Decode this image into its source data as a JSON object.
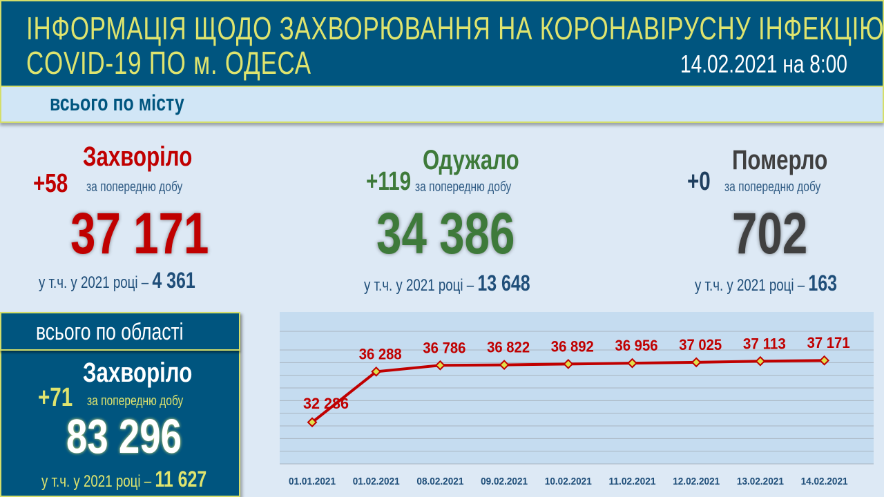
{
  "header": {
    "title_line1": "ІНФОРМАЦІЯ ЩОДО ЗАХВОРЮВАННЯ НА КОРОНАВІРУСНУ ІНФЕКЦІЮ",
    "title_line2": "COVID-19 ПО м. ОДЕСА",
    "date": "14.02.2021 на 8:00"
  },
  "city": {
    "section_title": "всього по місту",
    "sick": {
      "label": "Захворіло",
      "delta": "+58",
      "period": "за попередню добу",
      "total": "37 171",
      "year_label": "у т.ч. у 2021 році –",
      "year_value": "4 361"
    },
    "recovered": {
      "label": "Одужало",
      "delta": "+119",
      "period": "за попередню добу",
      "total": "34 386",
      "year_label": "у т.ч. у 2021 році –",
      "year_value": "13 648"
    },
    "died": {
      "label": "Померло",
      "delta": "+0",
      "period": "за попередню добу",
      "total": "702",
      "year_label": "у т.ч. у 2021 році –",
      "year_value": "163"
    }
  },
  "region": {
    "section_title": "всього по області",
    "label": "Захворіло",
    "delta": "+71",
    "period": "за попередню добу",
    "total": "83 296",
    "year_label": "у т.ч. у 2021 році –",
    "year_value": "11 627"
  },
  "colors": {
    "header_bg": "#00557f",
    "accent_yellow": "#dfe46e",
    "red": "#c00000",
    "green": "#3e7a3a",
    "gray": "#404040",
    "line": "#c00000",
    "marker": "#e0e04a"
  },
  "chart_data": {
    "type": "line",
    "categories": [
      "01.01.2021",
      "01.02.2021",
      "08.02.2021",
      "09.02.2021",
      "10.02.2021",
      "11.02.2021",
      "12.02.2021",
      "13.02.2021",
      "14.02.2021"
    ],
    "values": [
      32286,
      36288,
      36786,
      36822,
      36892,
      36956,
      37025,
      37113,
      37171
    ],
    "value_labels": [
      "32 286",
      "36 288",
      "36 786",
      "36 822",
      "36 892",
      "36 956",
      "37 025",
      "37 113",
      "37 171"
    ],
    "ylim": [
      29000,
      41000
    ],
    "grid": true,
    "legend": "none",
    "title": "",
    "xlabel": "",
    "ylabel": ""
  }
}
